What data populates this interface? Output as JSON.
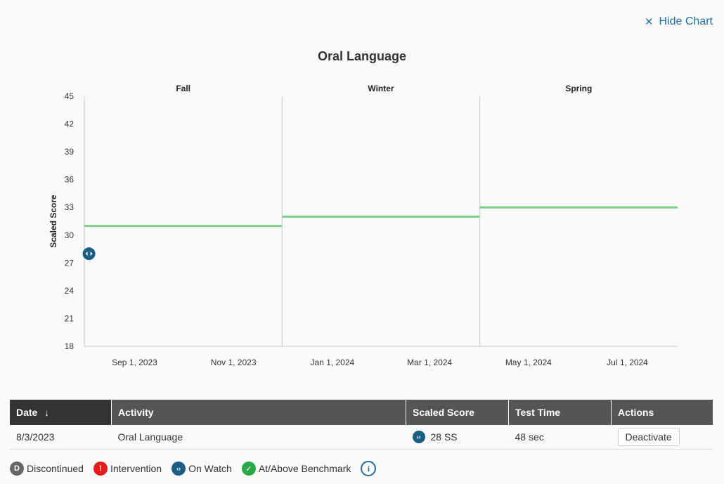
{
  "header": {
    "hide_chart_label": "Hide Chart"
  },
  "chart_data": {
    "type": "line",
    "title": "Oral Language",
    "ylabel": "Scaled Score",
    "xlabel": "",
    "ylim": [
      18,
      45
    ],
    "yticks": [
      18,
      21,
      24,
      27,
      30,
      33,
      36,
      39,
      42,
      45
    ],
    "xlim": [
      "2023-08-01",
      "2024-08-01"
    ],
    "xticks": [
      {
        "label": "Sep 1, 2023",
        "date": "2023-09-01"
      },
      {
        "label": "Nov 1, 2023",
        "date": "2023-11-01"
      },
      {
        "label": "Jan 1, 2024",
        "date": "2024-01-01"
      },
      {
        "label": "Mar 1, 2024",
        "date": "2024-03-01"
      },
      {
        "label": "May 1, 2024",
        "date": "2024-05-01"
      },
      {
        "label": "Jul 1, 2024",
        "date": "2024-07-01"
      }
    ],
    "seasons": [
      {
        "name": "Fall",
        "start": "2023-08-01",
        "end": "2023-12-01",
        "benchmark": 31
      },
      {
        "name": "Winter",
        "start": "2023-12-01",
        "end": "2024-04-01",
        "benchmark": 32
      },
      {
        "name": "Spring",
        "start": "2024-04-01",
        "end": "2024-08-01",
        "benchmark": 33
      }
    ],
    "points": [
      {
        "date": "2023-08-03",
        "value": 28,
        "status": "on-watch"
      }
    ],
    "colors": {
      "benchmark": "#7ccf8b",
      "on_watch": "#1a5e86",
      "divider": "#c8c8c8"
    },
    "grid": false
  },
  "table": {
    "headers": {
      "date": "Date",
      "activity": "Activity",
      "score": "Scaled Score",
      "time": "Test Time",
      "actions": "Actions"
    },
    "rows": [
      {
        "date": "8/3/2023",
        "activity": "Oral Language",
        "score": "28 SS",
        "time": "48 sec",
        "action": "Deactivate"
      }
    ]
  },
  "legend": {
    "discontinued": "Discontinued",
    "intervention": "Intervention",
    "on_watch": "On Watch",
    "benchmark": "At/Above Benchmark",
    "discontinued_glyph": "D",
    "intervention_glyph": "!"
  }
}
